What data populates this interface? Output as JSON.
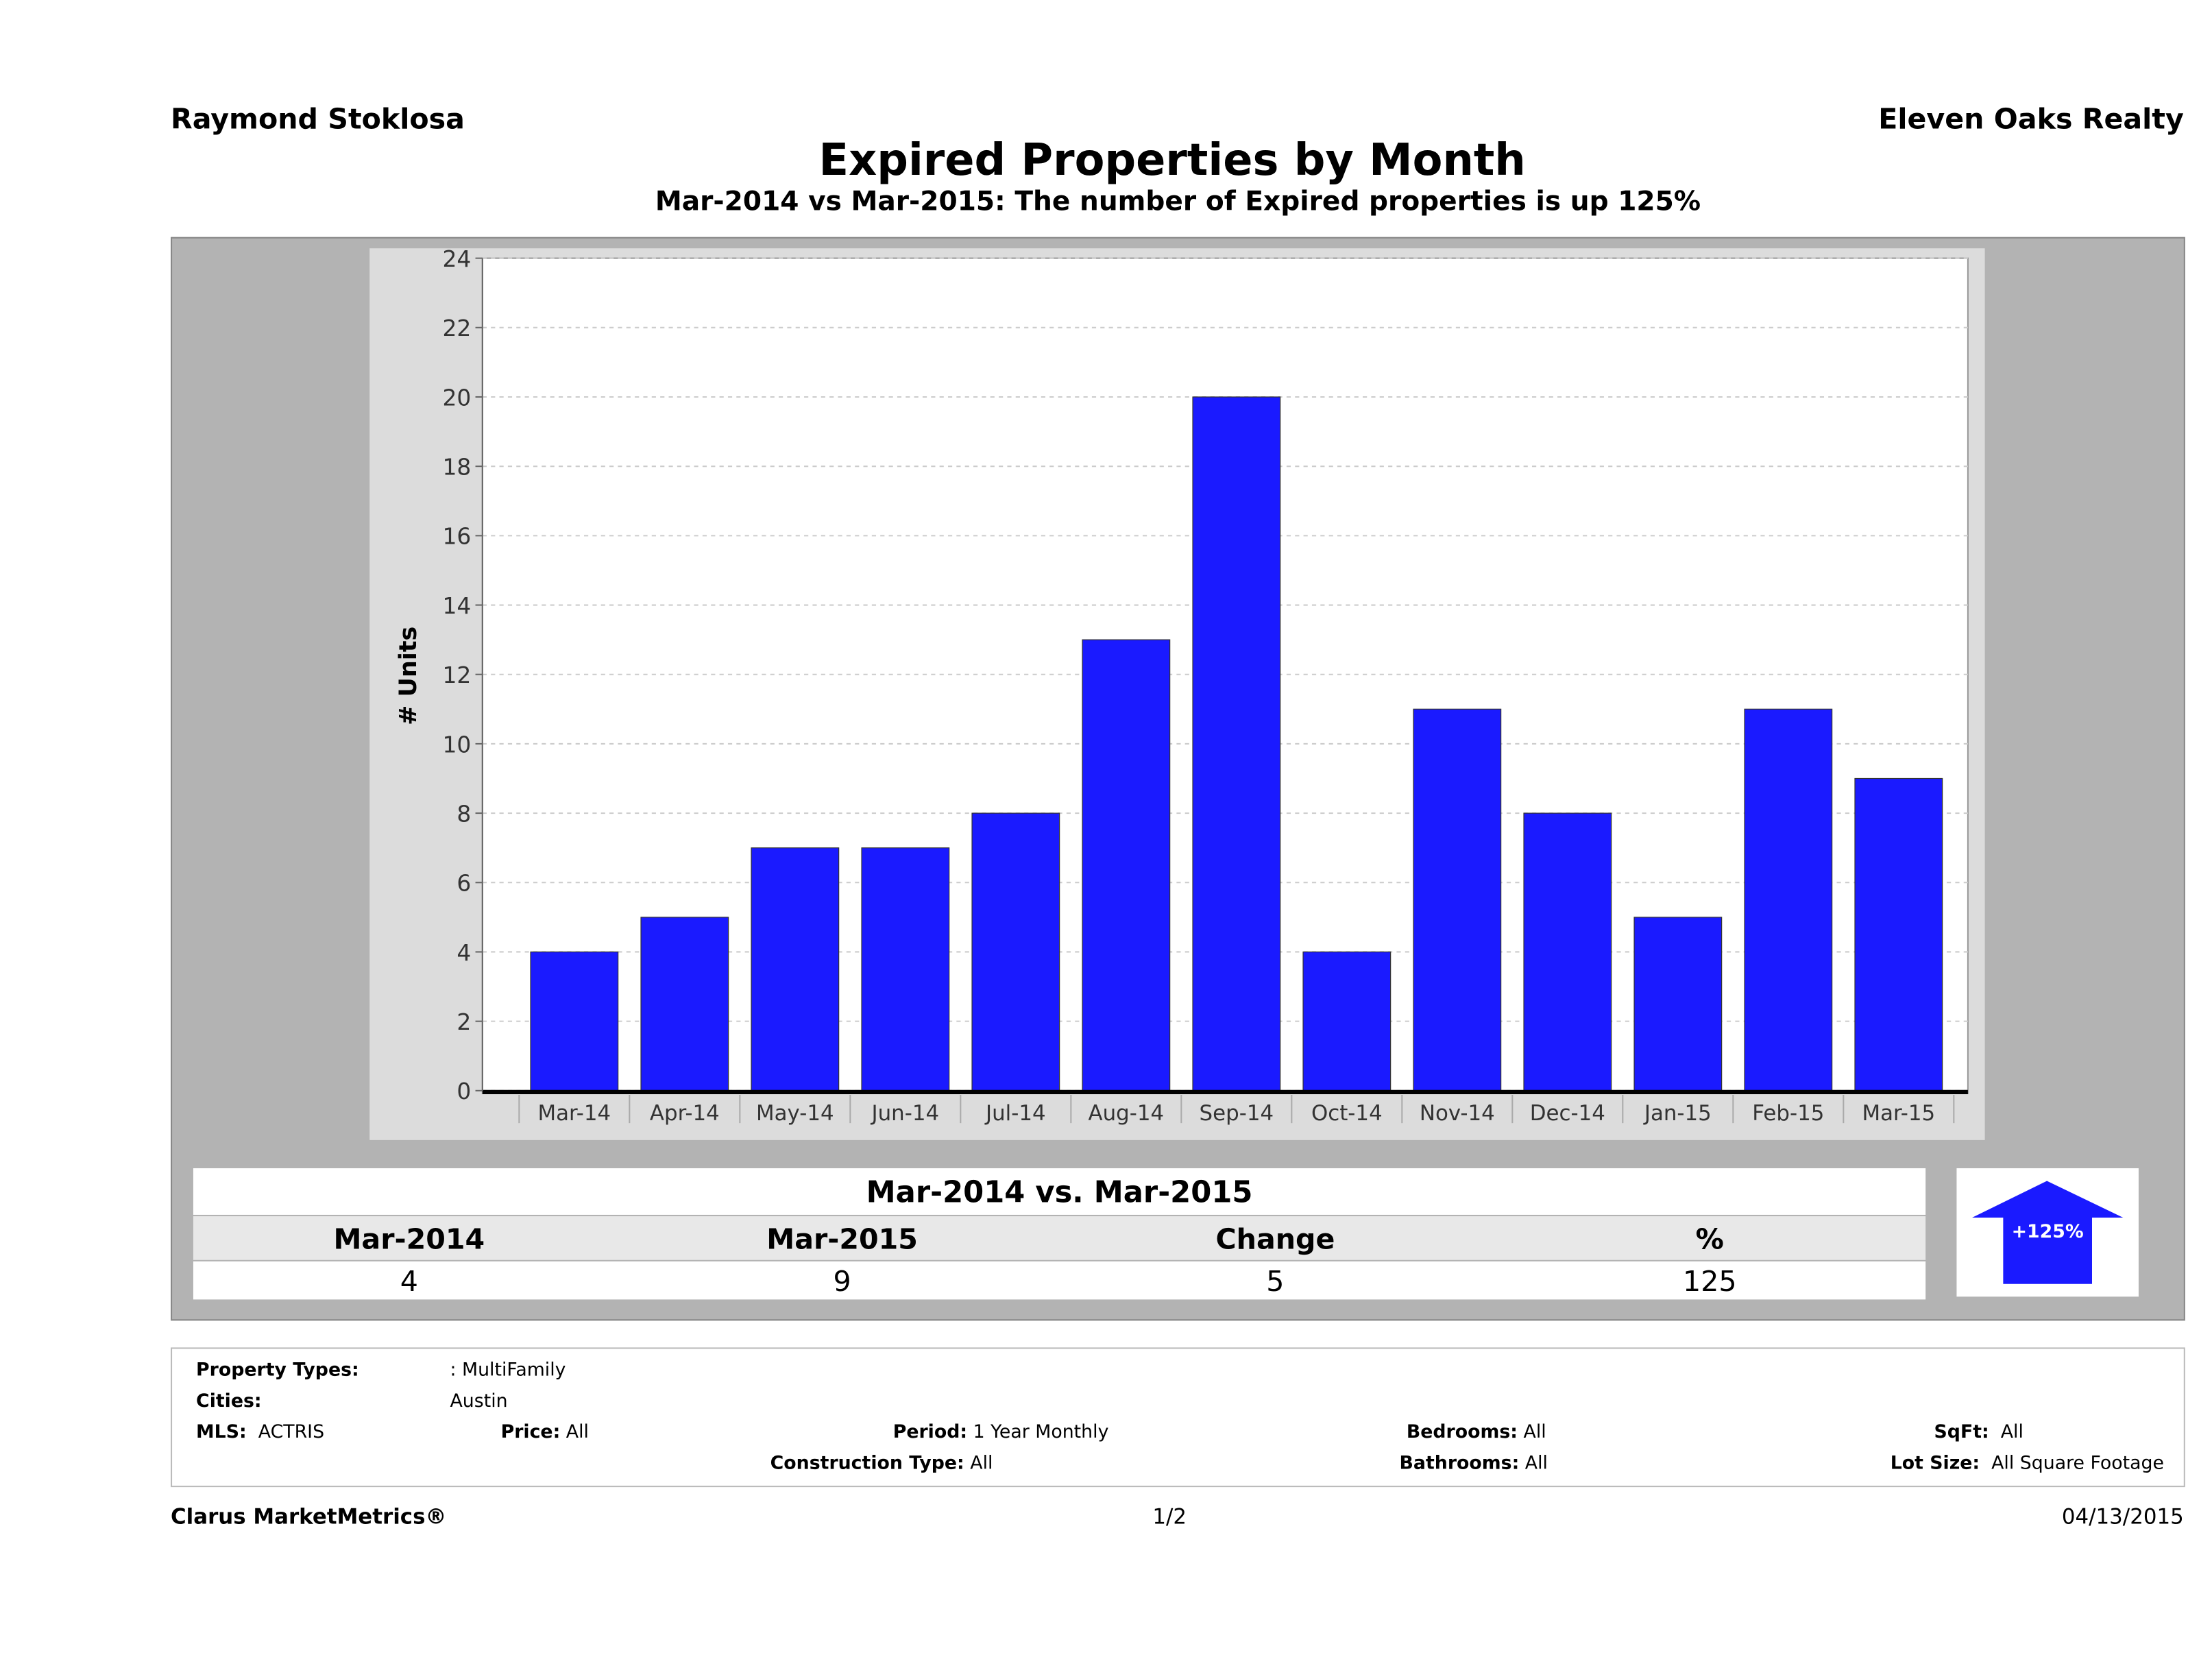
{
  "header": {
    "agent": "Raymond Stoklosa",
    "company": "Eleven Oaks Realty",
    "title": "Expired Properties by Month",
    "subtitle": "Mar-2014 vs Mar-2015: The number of Expired  properties is up 125%"
  },
  "chart_data": {
    "type": "bar",
    "title": "Expired Properties by Month",
    "ylabel": "# Units",
    "xlabel": "",
    "ylim": [
      0,
      24
    ],
    "yticks": [
      "0",
      "2",
      "4",
      "6",
      "8",
      "10",
      "12",
      "14",
      "16",
      "18",
      "20",
      "22",
      "24"
    ],
    "grid": true,
    "categories": [
      "Mar-14",
      "Apr-14",
      "May-14",
      "Jun-14",
      "Jul-14",
      "Aug-14",
      "Sep-14",
      "Oct-14",
      "Nov-14",
      "Dec-14",
      "Jan-15",
      "Feb-15",
      "Mar-15"
    ],
    "values": [
      4,
      5,
      7,
      7,
      8,
      13,
      20,
      4,
      11,
      8,
      5,
      11,
      9
    ],
    "bar_color": "#1a1aff"
  },
  "summary": {
    "title": "Mar-2014 vs. Mar-2015",
    "headers": [
      "Mar-2014",
      "Mar-2015",
      "Change",
      "%"
    ],
    "values": [
      "4",
      "9",
      "5",
      "125"
    ],
    "badge": "+125%",
    "badge_icon": "up-arrow-icon",
    "badge_color": "#1a1aff"
  },
  "info": {
    "property_types_label": "Property Types:",
    "property_types": ": MultiFamily",
    "cities_label": "Cities:",
    "cities": "Austin",
    "mls_label": "MLS:",
    "mls": "ACTRIS",
    "price_label": "Price:",
    "price": "All",
    "period_label": "Period:",
    "period": "1 Year Monthly",
    "construction_label": "Construction Type:",
    "construction": "All",
    "bedrooms_label": "Bedrooms:",
    "bedrooms": "All",
    "bathrooms_label": "Bathrooms:",
    "bathrooms": "All",
    "sqft_label": "SqFt:",
    "sqft": "All",
    "lot_label": "Lot Size:",
    "lot": "All Square Footage"
  },
  "footer": {
    "brand": "Clarus MarketMetrics®",
    "page": "1/2",
    "date": "04/13/2015"
  }
}
